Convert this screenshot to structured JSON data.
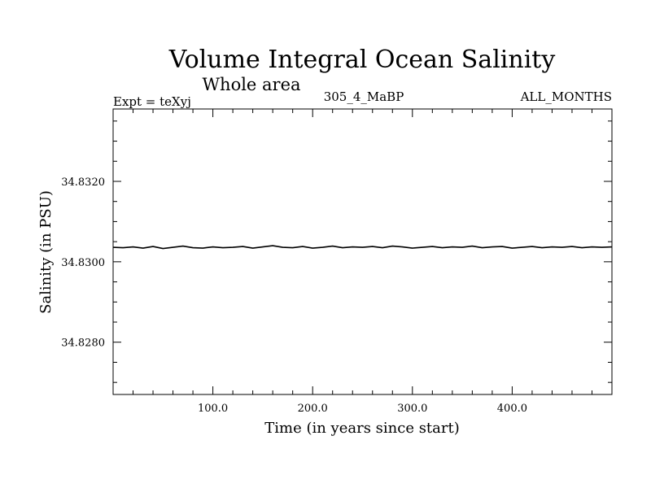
{
  "chart_data": {
    "type": "line",
    "title": "Volume Integral Ocean Salinity",
    "subtitle": "Whole area",
    "experiment": "Expt = teXyj",
    "run": "305_4_MaBP",
    "period": "ALL_MONTHS",
    "xlabel": "Time (in years since start)",
    "ylabel": "Salinity (in PSU)",
    "xlim": [
      0,
      500
    ],
    "ylim": [
      34.8267,
      34.8338
    ],
    "x_ticks": [
      100,
      200,
      300,
      400
    ],
    "x_tick_labels": [
      "100.0",
      "200.0",
      "300.0",
      "400.0"
    ],
    "y_ticks": [
      34.828,
      34.83,
      34.832
    ],
    "y_tick_labels": [
      "34.8280",
      "34.8300",
      "34.8320"
    ],
    "grid": false,
    "series": [
      {
        "color": "#000000",
        "x": [
          0,
          10,
          20,
          30,
          40,
          50,
          60,
          70,
          80,
          90,
          100,
          110,
          120,
          130,
          140,
          150,
          160,
          170,
          180,
          190,
          200,
          210,
          220,
          230,
          240,
          250,
          260,
          270,
          280,
          290,
          300,
          310,
          320,
          330,
          340,
          350,
          360,
          370,
          380,
          390,
          400,
          410,
          420,
          430,
          440,
          450,
          460,
          470,
          480,
          490,
          500
        ],
        "values": [
          34.83036,
          34.83035,
          34.83037,
          34.83034,
          34.83038,
          34.83033,
          34.83036,
          34.83039,
          34.83035,
          34.83034,
          34.83037,
          34.83035,
          34.83036,
          34.83038,
          34.83034,
          34.83037,
          34.8304,
          34.83036,
          34.83035,
          34.83038,
          34.83034,
          34.83036,
          34.83039,
          34.83035,
          34.83037,
          34.83036,
          34.83038,
          34.83035,
          34.83039,
          34.83037,
          34.83034,
          34.83036,
          34.83038,
          34.83035,
          34.83037,
          34.83036,
          34.83039,
          34.83035,
          34.83037,
          34.83038,
          34.83034,
          34.83036,
          34.83038,
          34.83035,
          34.83037,
          34.83036,
          34.83038,
          34.83035,
          34.83037,
          34.83036,
          34.83037
        ]
      }
    ]
  }
}
